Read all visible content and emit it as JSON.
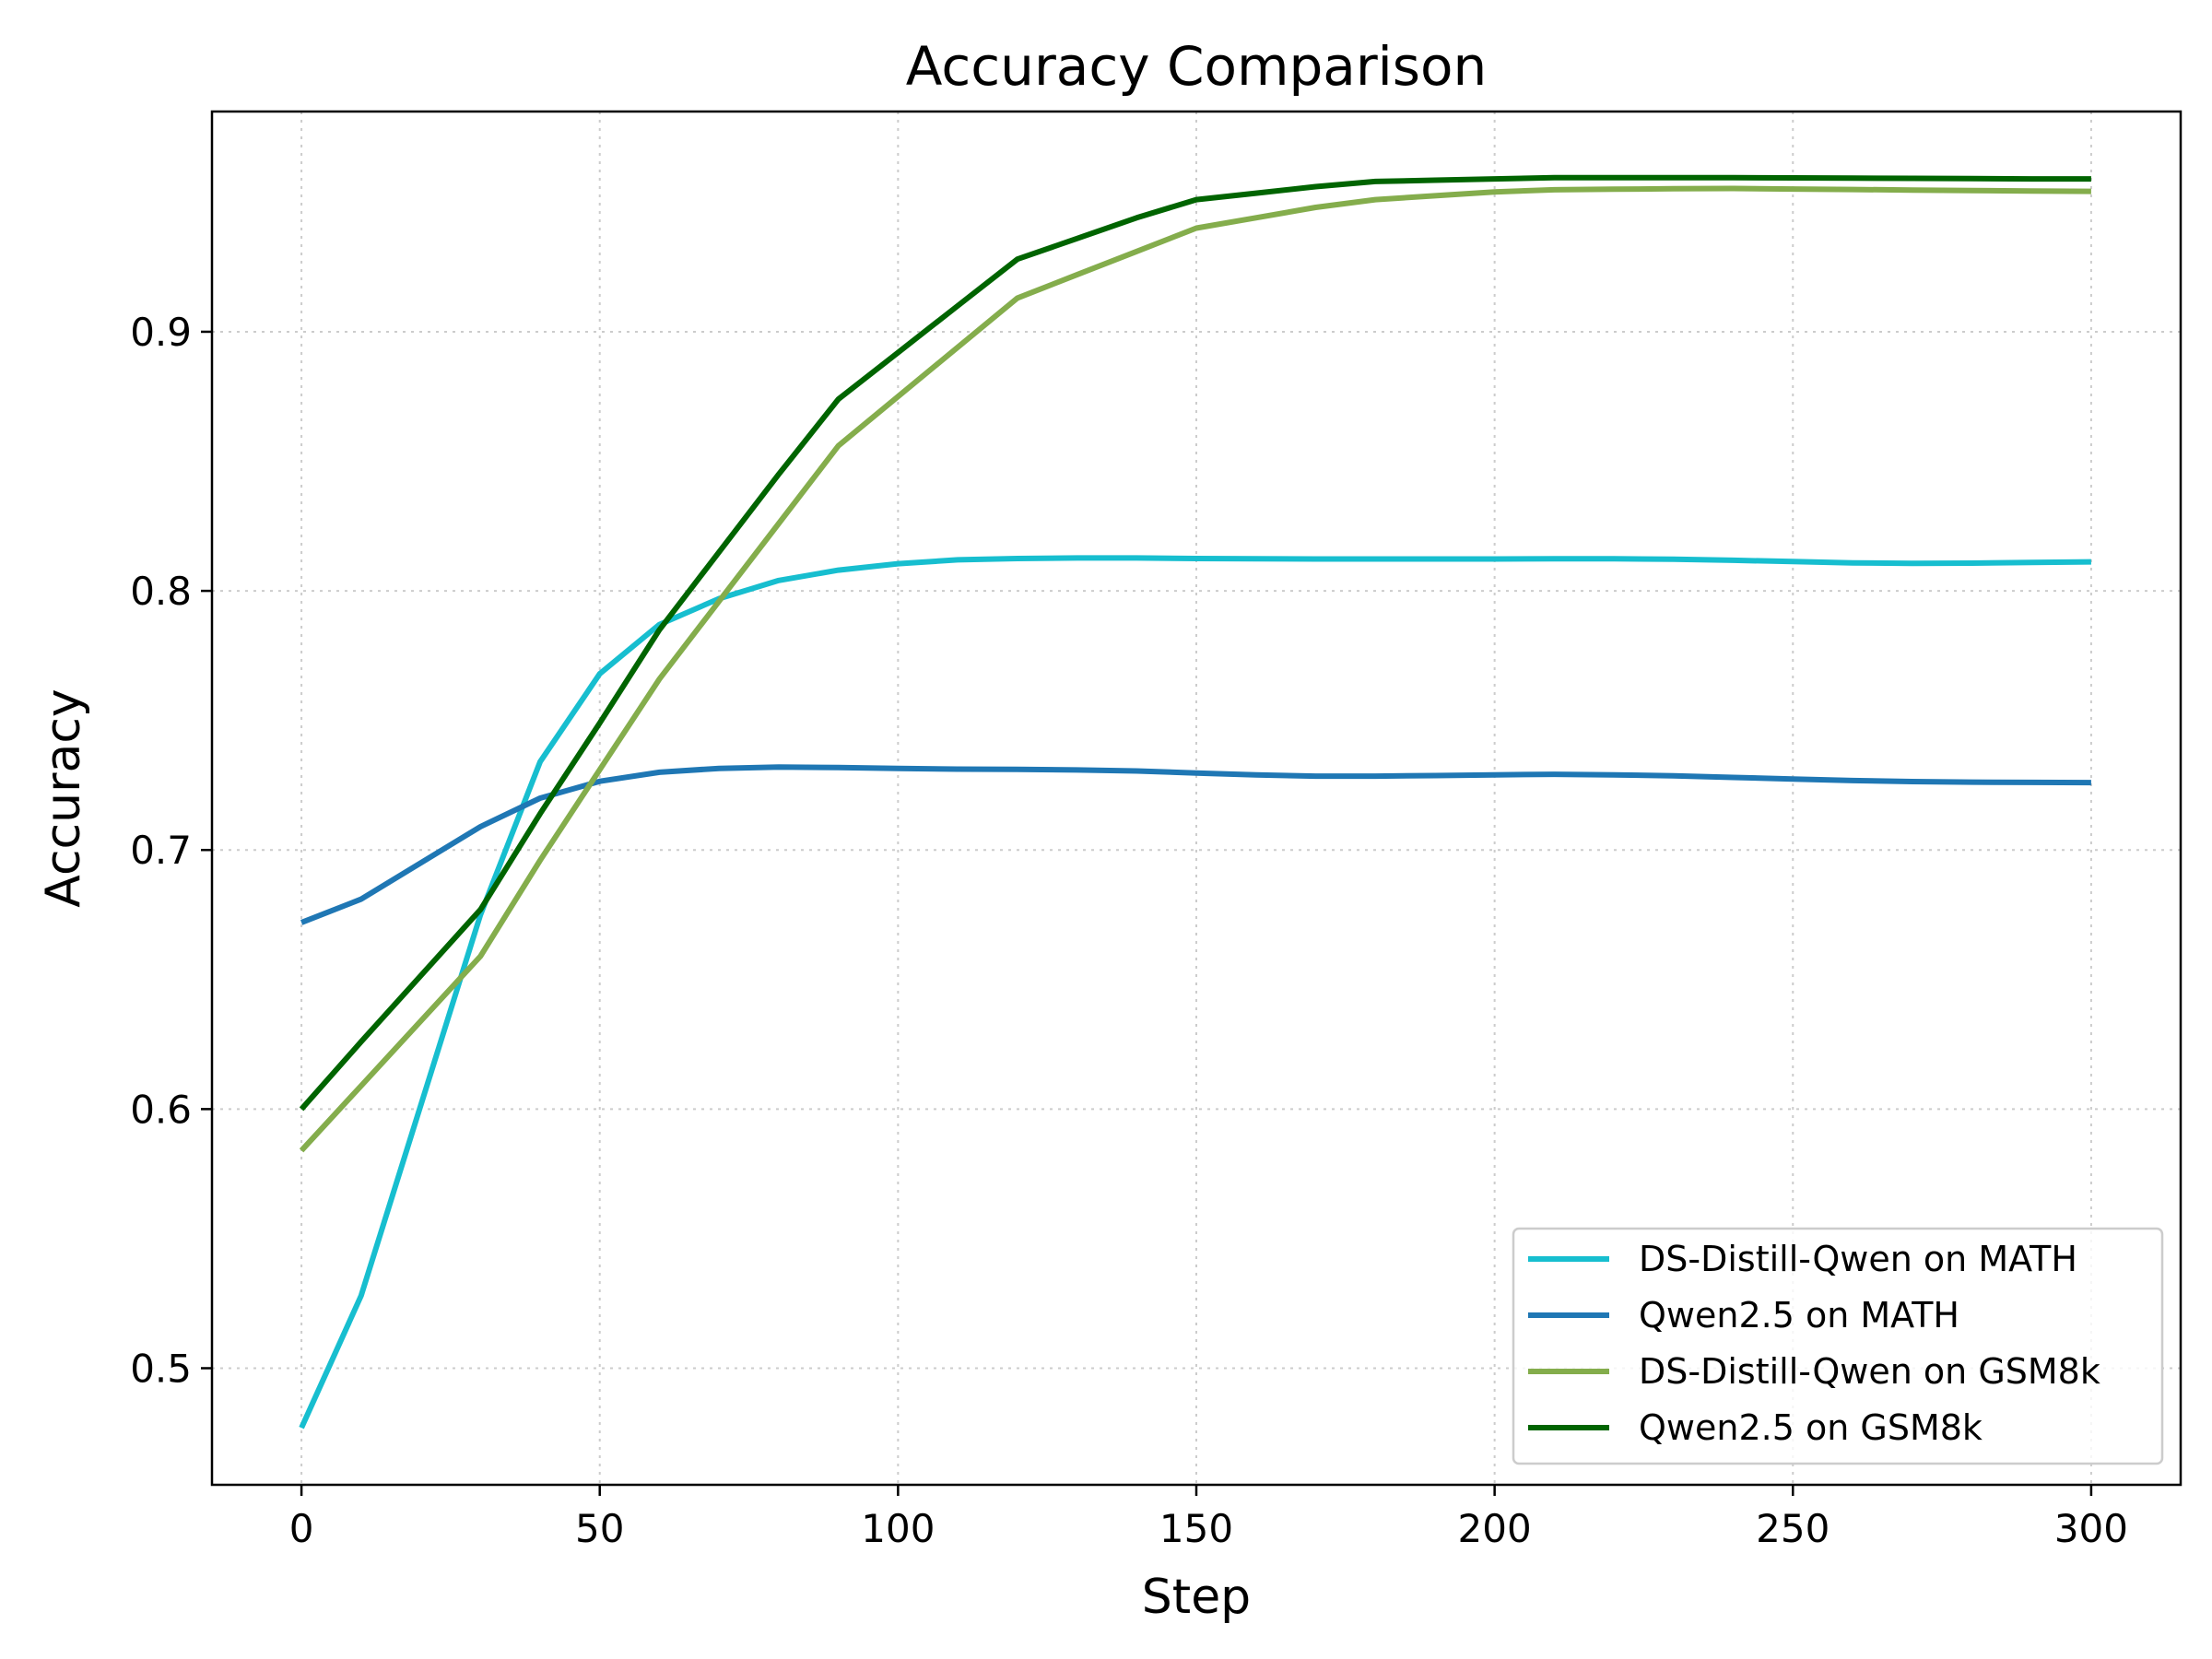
{
  "chart_data": {
    "type": "line",
    "title": "Accuracy Comparison",
    "xlabel": "Step",
    "ylabel": "Accuracy",
    "xlim": [
      -15,
      315
    ],
    "ylim": [
      0.455,
      0.985
    ],
    "xticks": [
      0,
      50,
      100,
      150,
      200,
      250,
      300
    ],
    "yticks": [
      0.5,
      0.6,
      0.7,
      0.8,
      0.9
    ],
    "ytick_labels": [
      "0.5",
      "0.6",
      "0.7",
      "0.8",
      "0.9"
    ],
    "grid": true,
    "legend_position": "lower-right",
    "x": [
      0,
      10,
      30,
      40,
      50,
      60,
      70,
      80,
      90,
      100,
      110,
      120,
      130,
      140,
      150,
      160,
      170,
      180,
      190,
      200,
      210,
      220,
      230,
      240,
      250,
      260,
      270,
      280,
      290,
      300
    ],
    "series": [
      {
        "name": "DS-Distill-Qwen on MATH",
        "color": "#17becf",
        "values": [
          0.477,
          0.528,
          0.675,
          0.734,
          0.768,
          0.787,
          0.797,
          0.804,
          0.808,
          0.8105,
          0.812,
          0.8125,
          0.8127,
          0.8127,
          0.8125,
          0.8124,
          0.8123,
          0.8123,
          0.8123,
          0.8123,
          0.8124,
          0.8124,
          0.8122,
          0.8118,
          0.8113,
          0.8108,
          0.8106,
          0.8107,
          0.811,
          0.8112
        ]
      },
      {
        "name": "Qwen2.5 on MATH",
        "color": "#1f77b4",
        "values": [
          0.672,
          0.681,
          0.709,
          0.72,
          0.7265,
          0.73,
          0.7315,
          0.732,
          0.7318,
          0.7315,
          0.7312,
          0.7311,
          0.7309,
          0.7305,
          0.7297,
          0.729,
          0.7285,
          0.7285,
          0.7287,
          0.729,
          0.7292,
          0.729,
          0.7286,
          0.728,
          0.7274,
          0.7268,
          0.7264,
          0.7262,
          0.7261,
          0.726
        ]
      },
      {
        "name": "DS-Distill-Qwen on GSM8k",
        "color": "#84ad4c",
        "values": [
          0.584,
          0.609,
          0.659,
          0.696,
          0.731,
          0.766,
          0.796,
          0.826,
          0.856,
          0.875,
          0.894,
          0.913,
          0.922,
          0.931,
          0.94,
          0.944,
          0.948,
          0.951,
          0.9525,
          0.954,
          0.9548,
          0.955,
          0.9552,
          0.9553,
          0.9551,
          0.9549,
          0.9547,
          0.9545,
          0.9543,
          0.9542
        ]
      },
      {
        "name": "Qwen2.5 on GSM8k",
        "color": "#006400",
        "values": [
          0.6,
          0.626,
          0.677,
          0.714,
          0.749,
          0.785,
          0.815,
          0.845,
          0.874,
          0.892,
          0.91,
          0.928,
          0.936,
          0.944,
          0.951,
          0.9535,
          0.956,
          0.958,
          0.9585,
          0.959,
          0.9595,
          0.9595,
          0.9595,
          0.9595,
          0.9594,
          0.9593,
          0.9592,
          0.9591,
          0.959,
          0.959
        ]
      }
    ]
  }
}
